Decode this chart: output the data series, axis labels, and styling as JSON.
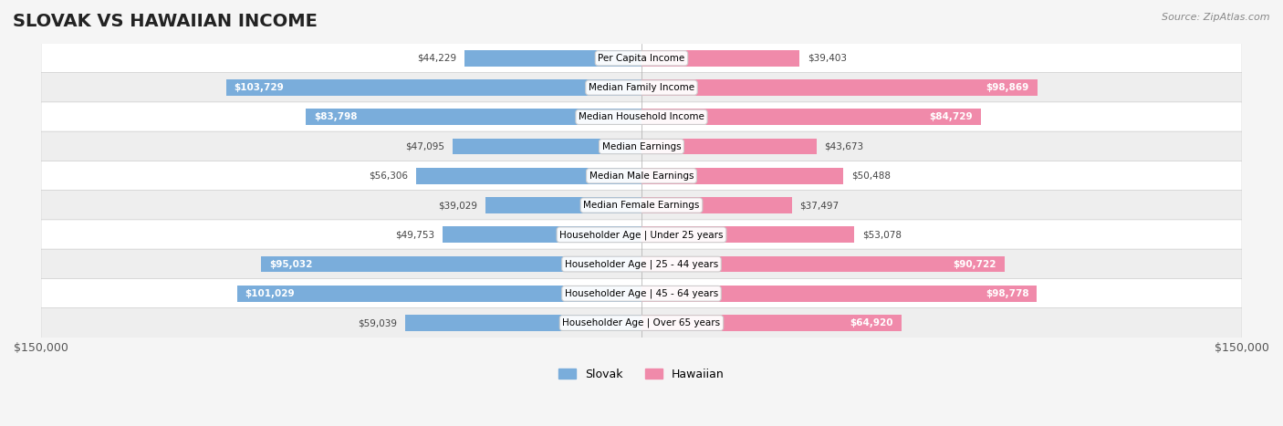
{
  "title": "SLOVAK VS HAWAIIAN INCOME",
  "source": "Source: ZipAtlas.com",
  "categories": [
    "Per Capita Income",
    "Median Family Income",
    "Median Household Income",
    "Median Earnings",
    "Median Male Earnings",
    "Median Female Earnings",
    "Householder Age | Under 25 years",
    "Householder Age | 25 - 44 years",
    "Householder Age | 45 - 64 years",
    "Householder Age | Over 65 years"
  ],
  "slovak_values": [
    44229,
    103729,
    83798,
    47095,
    56306,
    39029,
    49753,
    95032,
    101029,
    59039
  ],
  "hawaiian_values": [
    39403,
    98869,
    84729,
    43673,
    50488,
    37497,
    53078,
    90722,
    98778,
    64920
  ],
  "slovak_labels": [
    "$44,229",
    "$103,729",
    "$83,798",
    "$47,095",
    "$56,306",
    "$39,029",
    "$49,753",
    "$95,032",
    "$101,029",
    "$59,039"
  ],
  "hawaiian_labels": [
    "$39,403",
    "$98,869",
    "$84,729",
    "$43,673",
    "$50,488",
    "$37,497",
    "$53,078",
    "$90,722",
    "$98,778",
    "$64,920"
  ],
  "slovak_color": "#7aaddb",
  "slovak_color_dark": "#5b9dc9",
  "hawaiian_color": "#f08aaa",
  "hawaiian_color_dark": "#e06a8a",
  "max_value": 150000,
  "bar_height": 0.55,
  "background_color": "#f5f5f5",
  "row_colors": [
    "#ffffff",
    "#eeeeee"
  ],
  "title_fontsize": 14,
  "label_fontsize": 8.5,
  "axis_label_fontsize": 9
}
